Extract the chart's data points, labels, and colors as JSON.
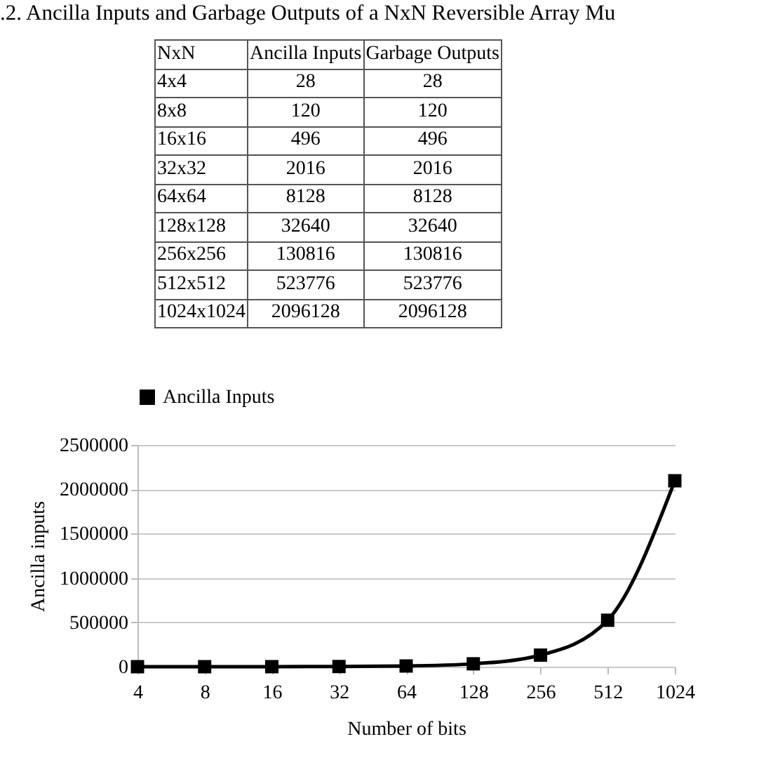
{
  "chart_data": [
    {
      "type": "other",
      "title": ".2. Ancilla Inputs and Garbage Outputs of a NxN Reversible Array Mu",
      "xlabel": "NxN",
      "categories": [
        "4x4",
        "8x8",
        "16x16",
        "32x32",
        "64x64",
        "128x128",
        "256x256",
        "512x512",
        "1024x1024"
      ],
      "data_labels": true,
      "series": [
        {
          "name": "Ancilla Inputs",
          "values": [
            28,
            120,
            496,
            2016,
            8128,
            32640,
            130816,
            523776,
            2096128
          ]
        },
        {
          "name": "Garbage Outputs",
          "values": [
            28,
            120,
            496,
            2016,
            8128,
            32640,
            130816,
            523776,
            2096128
          ]
        }
      ]
    },
    {
      "type": "line",
      "xlabel": "Number of bits",
      "ylabel": "Ancilla inputs",
      "categories": [
        "4",
        "8",
        "16",
        "32",
        "64",
        "128",
        "256",
        "512",
        "1024"
      ],
      "series": [
        {
          "name": "Ancilla Inputs",
          "color": "#000000",
          "values": [
            28,
            120,
            496,
            2016,
            8128,
            32640,
            130816,
            523776,
            2096128
          ]
        }
      ],
      "ylim": [
        0,
        2500000
      ],
      "yticks": [
        0,
        500000,
        1000000,
        1500000,
        2000000,
        2500000
      ],
      "grid": "y",
      "legend": "top",
      "marker": "square",
      "line_style": "solid"
    }
  ]
}
